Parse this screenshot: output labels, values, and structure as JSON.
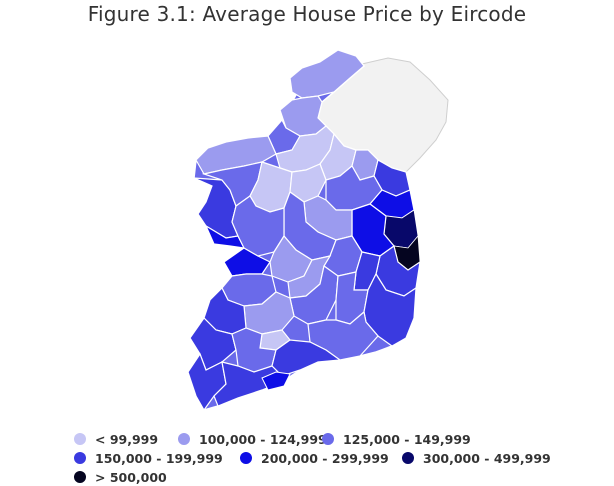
{
  "title": "Figure 3.1: Average House Price by Eircode",
  "map": {
    "region_colors": {
      "northern_ireland": "#f2f2f2",
      "outline": "#ffffff"
    }
  },
  "legend": {
    "items": [
      {
        "label": "< 99,999",
        "color": "#c6c6f5"
      },
      {
        "label": "100,000 - 124,999",
        "color": "#9b9bef"
      },
      {
        "label": "125,000 - 149,999",
        "color": "#6a6aea"
      },
      {
        "label": "150,000 - 199,999",
        "color": "#3a3ae0"
      },
      {
        "label": "200,000 - 299,999",
        "color": "#0e0ee6"
      },
      {
        "label": "300,000 - 499,999",
        "color": "#08086a"
      },
      {
        "label": "> 500,000",
        "color": "#050520"
      }
    ]
  }
}
